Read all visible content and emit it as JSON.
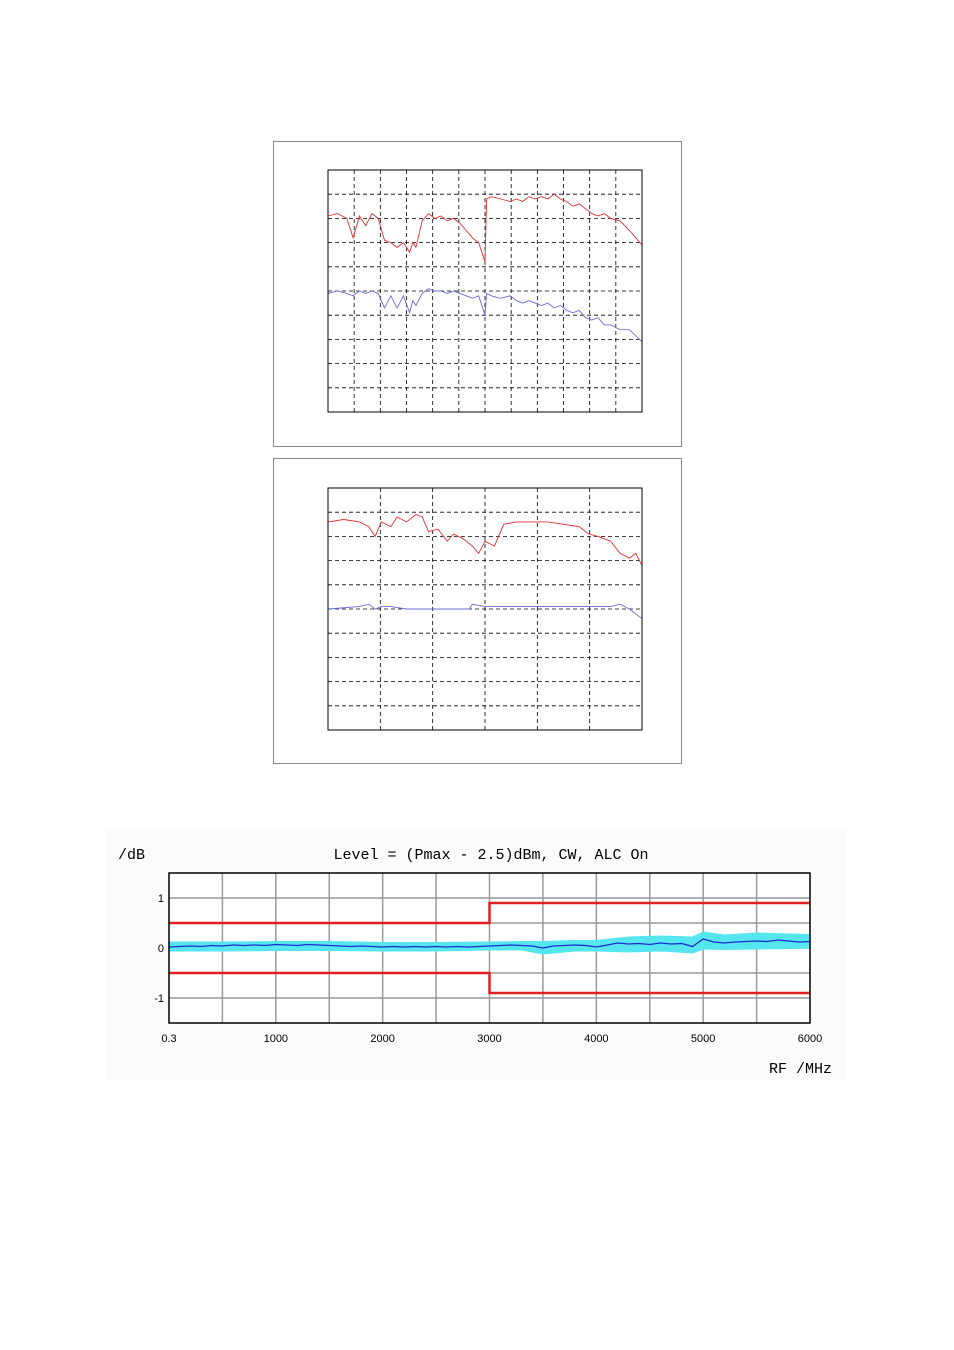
{
  "chart_data": [
    {
      "type": "line",
      "title": "",
      "xlabel": "",
      "ylabel": "",
      "x_gridlines": 12,
      "y_gridlines": 10,
      "grid": "dashed",
      "xlim": [
        0,
        1
      ],
      "ylim": [
        0,
        1
      ],
      "series": [
        {
          "color": "#e03030",
          "x": [
            0,
            0.03,
            0.06,
            0.08,
            0.1,
            0.12,
            0.14,
            0.16,
            0.18,
            0.2,
            0.22,
            0.24,
            0.26,
            0.27,
            0.28,
            0.3,
            0.32,
            0.34,
            0.36,
            0.38,
            0.4,
            0.42,
            0.44,
            0.46,
            0.48,
            0.5,
            0.505,
            0.52,
            0.55,
            0.58,
            0.6,
            0.62,
            0.64,
            0.66,
            0.68,
            0.7,
            0.72,
            0.74,
            0.76,
            0.78,
            0.8,
            0.82,
            0.84,
            0.86,
            0.88,
            0.9,
            0.93,
            0.96,
            1
          ],
          "y": [
            0.81,
            0.82,
            0.8,
            0.72,
            0.81,
            0.77,
            0.82,
            0.8,
            0.71,
            0.7,
            0.68,
            0.7,
            0.66,
            0.7,
            0.68,
            0.79,
            0.82,
            0.8,
            0.81,
            0.79,
            0.8,
            0.78,
            0.75,
            0.72,
            0.7,
            0.62,
            0.88,
            0.89,
            0.88,
            0.87,
            0.88,
            0.87,
            0.89,
            0.88,
            0.89,
            0.88,
            0.9,
            0.88,
            0.87,
            0.85,
            0.86,
            0.84,
            0.82,
            0.81,
            0.82,
            0.8,
            0.79,
            0.75,
            0.69
          ]
        },
        {
          "color": "#6b6bdc",
          "x": [
            0,
            0.03,
            0.06,
            0.08,
            0.1,
            0.12,
            0.14,
            0.16,
            0.18,
            0.2,
            0.22,
            0.24,
            0.26,
            0.27,
            0.28,
            0.3,
            0.32,
            0.34,
            0.36,
            0.38,
            0.4,
            0.42,
            0.44,
            0.46,
            0.48,
            0.5,
            0.505,
            0.52,
            0.55,
            0.58,
            0.6,
            0.62,
            0.64,
            0.66,
            0.68,
            0.7,
            0.72,
            0.74,
            0.76,
            0.78,
            0.8,
            0.82,
            0.84,
            0.86,
            0.88,
            0.9,
            0.93,
            0.96,
            1
          ],
          "y": [
            0.49,
            0.5,
            0.49,
            0.48,
            0.5,
            0.49,
            0.5,
            0.49,
            0.43,
            0.48,
            0.43,
            0.48,
            0.41,
            0.46,
            0.44,
            0.49,
            0.51,
            0.5,
            0.5,
            0.49,
            0.5,
            0.49,
            0.48,
            0.47,
            0.48,
            0.4,
            0.49,
            0.48,
            0.47,
            0.48,
            0.46,
            0.45,
            0.46,
            0.45,
            0.44,
            0.45,
            0.43,
            0.44,
            0.42,
            0.41,
            0.42,
            0.39,
            0.38,
            0.39,
            0.36,
            0.36,
            0.34,
            0.34,
            0.29
          ]
        }
      ]
    },
    {
      "type": "line",
      "title": "",
      "xlabel": "",
      "ylabel": "",
      "x_gridlines": 6,
      "y_gridlines": 10,
      "grid": "dashed",
      "xlim": [
        0,
        1
      ],
      "ylim": [
        0,
        1
      ],
      "series": [
        {
          "color": "#e03030",
          "x": [
            0,
            0.05,
            0.1,
            0.13,
            0.15,
            0.17,
            0.2,
            0.22,
            0.25,
            0.28,
            0.3,
            0.32,
            0.35,
            0.38,
            0.4,
            0.43,
            0.46,
            0.48,
            0.5,
            0.53,
            0.56,
            0.6,
            0.65,
            0.7,
            0.75,
            0.8,
            0.83,
            0.86,
            0.9,
            0.93,
            0.96,
            0.98,
            1
          ],
          "y": [
            0.86,
            0.87,
            0.86,
            0.84,
            0.8,
            0.86,
            0.84,
            0.88,
            0.86,
            0.89,
            0.88,
            0.82,
            0.83,
            0.78,
            0.81,
            0.79,
            0.76,
            0.73,
            0.78,
            0.76,
            0.85,
            0.86,
            0.86,
            0.86,
            0.85,
            0.84,
            0.81,
            0.8,
            0.78,
            0.73,
            0.71,
            0.73,
            0.68
          ]
        },
        {
          "color": "#6b6bdc",
          "x": [
            0,
            0.1,
            0.13,
            0.15,
            0.17,
            0.2,
            0.25,
            0.3,
            0.35,
            0.4,
            0.45,
            0.46,
            0.5,
            0.55,
            0.6,
            0.65,
            0.7,
            0.75,
            0.8,
            0.85,
            0.9,
            0.93,
            0.96,
            1
          ],
          "y": [
            0.5,
            0.51,
            0.52,
            0.5,
            0.51,
            0.51,
            0.5,
            0.5,
            0.5,
            0.5,
            0.5,
            0.52,
            0.51,
            0.51,
            0.51,
            0.51,
            0.51,
            0.51,
            0.51,
            0.51,
            0.51,
            0.52,
            0.5,
            0.46
          ]
        }
      ]
    },
    {
      "type": "line",
      "title": "Level = (Pmax - 2.5)dBm, CW, ALC On",
      "xlabel": "RF /MHz",
      "ylabel": "/dB",
      "grid": "solid",
      "x_ticks": [
        0.3,
        1000,
        2000,
        3000,
        4000,
        5000,
        6000
      ],
      "x_tick_labels": [
        "0.3",
        "1000",
        "2000",
        "3000",
        "4000",
        "5000",
        "6000"
      ],
      "x_minor_step": 500,
      "y_ticks": [
        1,
        0,
        -1
      ],
      "y_tick_labels": [
        "1",
        "0",
        "-1"
      ],
      "y_minor_step": 0.5,
      "xlim": [
        0,
        6000
      ],
      "ylim": [
        -1.5,
        1.5
      ],
      "limit_lines": {
        "color": "#e02020",
        "upper": {
          "x": [
            0,
            3000,
            3000,
            6000
          ],
          "y": [
            0.5,
            0.5,
            0.9,
            0.9
          ]
        },
        "lower": {
          "x": [
            0,
            3000,
            3000,
            6000
          ],
          "y": [
            -0.5,
            -0.5,
            -0.9,
            -0.9
          ]
        }
      },
      "band": {
        "color": "#55e6f0",
        "x": [
          0,
          500,
          1000,
          1500,
          2000,
          2500,
          3000,
          3300,
          3500,
          3800,
          4000,
          4300,
          4600,
          4900,
          5000,
          5200,
          5500,
          5800,
          6000
        ],
        "upper": [
          0.12,
          0.12,
          0.13,
          0.13,
          0.11,
          0.11,
          0.12,
          0.13,
          0.13,
          0.15,
          0.15,
          0.22,
          0.24,
          0.22,
          0.32,
          0.26,
          0.3,
          0.28,
          0.27
        ],
        "lower": [
          -0.06,
          -0.06,
          -0.05,
          -0.05,
          -0.06,
          -0.06,
          -0.04,
          -0.04,
          -0.12,
          -0.06,
          -0.06,
          -0.08,
          -0.06,
          -0.1,
          -0.02,
          -0.03,
          -0.02,
          -0.01,
          0.0
        ]
      },
      "series": [
        {
          "color": "#1f2bd0",
          "x": [
            0,
            100,
            200,
            300,
            400,
            500,
            600,
            700,
            800,
            900,
            1000,
            1100,
            1200,
            1300,
            1400,
            1500,
            1600,
            1700,
            1800,
            1900,
            2000,
            2100,
            2200,
            2300,
            2400,
            2500,
            2600,
            2700,
            2800,
            2900,
            3000,
            3100,
            3200,
            3300,
            3400,
            3500,
            3600,
            3700,
            3800,
            3900,
            4000,
            4100,
            4200,
            4300,
            4400,
            4500,
            4600,
            4700,
            4800,
            4900,
            5000,
            5100,
            5200,
            5300,
            5400,
            5500,
            5600,
            5700,
            5800,
            5900,
            6000
          ],
          "y": [
            0.02,
            0.03,
            0.04,
            0.03,
            0.05,
            0.04,
            0.06,
            0.05,
            0.06,
            0.05,
            0.07,
            0.06,
            0.05,
            0.07,
            0.06,
            0.05,
            0.04,
            0.03,
            0.04,
            0.03,
            0.02,
            0.03,
            0.02,
            0.03,
            0.02,
            0.03,
            0.02,
            0.03,
            0.02,
            0.03,
            0.04,
            0.05,
            0.06,
            0.05,
            0.04,
            0.0,
            0.04,
            0.05,
            0.06,
            0.05,
            0.02,
            0.06,
            0.1,
            0.08,
            0.09,
            0.07,
            0.1,
            0.08,
            0.09,
            0.03,
            0.18,
            0.12,
            0.1,
            0.12,
            0.13,
            0.14,
            0.13,
            0.16,
            0.14,
            0.12,
            0.13
          ]
        }
      ]
    }
  ]
}
